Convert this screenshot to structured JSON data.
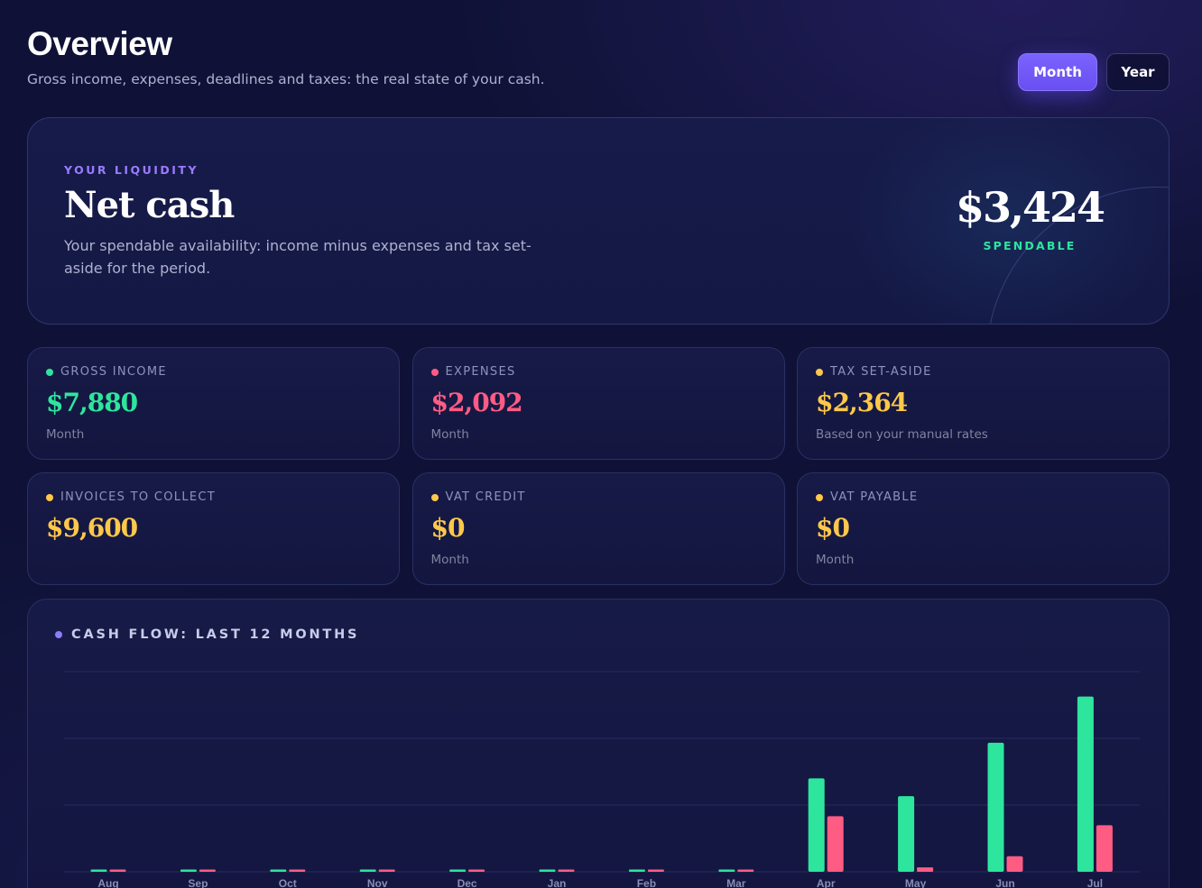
{
  "header": {
    "title": "Overview",
    "subtitle": "Gross income, expenses, deadlines and taxes: the real state of your cash.",
    "period_options": [
      "Month",
      "Year"
    ],
    "selected_period": "Month"
  },
  "hero": {
    "eyebrow": "YOUR LIQUIDITY",
    "title": "Net cash",
    "description": "Your spendable availability: income minus expenses and tax set-aside for the period.",
    "amount": "$3,424",
    "badge": "SPENDABLE"
  },
  "stats": [
    {
      "label": "GROSS INCOME",
      "value": "$7,880",
      "note": "Month",
      "color": "#2ee59d"
    },
    {
      "label": "EXPENSES",
      "value": "$2,092",
      "note": "Month",
      "color": "#ff5c84"
    },
    {
      "label": "TAX SET-ASIDE",
      "value": "$2,364",
      "note": "Based on your manual rates",
      "color": "#ffc84a"
    },
    {
      "label": "INVOICES TO COLLECT",
      "value": "$9,600",
      "note": "",
      "color": "#ffc84a"
    },
    {
      "label": "VAT CREDIT",
      "value": "$0",
      "note": "Month",
      "color": "#ffc84a"
    },
    {
      "label": "VAT PAYABLE",
      "value": "$0",
      "note": "Month",
      "color": "#ffc84a"
    }
  ],
  "chart": {
    "title": "CASH FLOW: LAST 12 MONTHS",
    "dot_color": "#8c7bff"
  },
  "chart_data": {
    "type": "bar",
    "categories": [
      "Aug",
      "Sep",
      "Oct",
      "Nov",
      "Dec",
      "Jan",
      "Feb",
      "Mar",
      "Apr",
      "May",
      "Jun",
      "Jul"
    ],
    "series": [
      {
        "color": "#2ee59d",
        "values": [
          0,
          0,
          0,
          0,
          0,
          0,
          0,
          0,
          4200,
          3400,
          5800,
          7880
        ]
      },
      {
        "color": "#ff5c84",
        "values": [
          0,
          0,
          0,
          0,
          0,
          0,
          0,
          0,
          2500,
          200,
          700,
          2092
        ]
      }
    ],
    "ylim": [
      0,
      9000
    ],
    "grid": true,
    "legend": "none"
  }
}
